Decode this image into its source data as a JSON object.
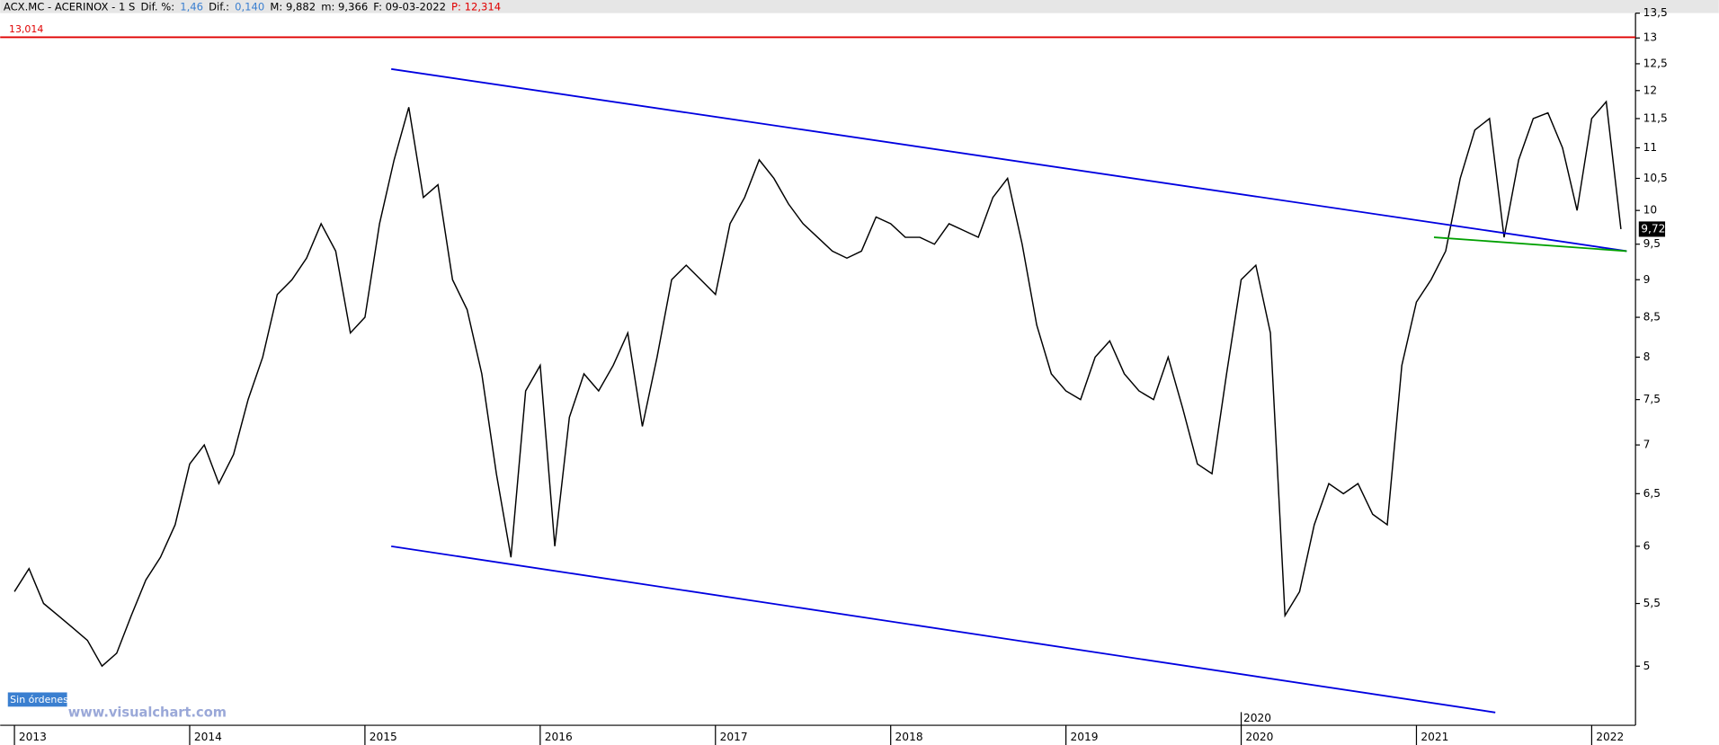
{
  "header": {
    "items": [
      {
        "text": "ACX.MC - ACERINOX -  1 S",
        "color": "#000000"
      },
      {
        "text": "Dif. %:",
        "color": "#000000"
      },
      {
        "text": "1,46",
        "color": "#3a7fd0"
      },
      {
        "text": "Dif.:",
        "color": "#000000"
      },
      {
        "text": "0,140",
        "color": "#3a7fd0"
      },
      {
        "text": "M: 9,882",
        "color": "#000000"
      },
      {
        "text": "m: 9,366",
        "color": "#000000"
      },
      {
        "text": "F: 09-03-2022",
        "color": "#000000"
      },
      {
        "text": "P: 12,314",
        "color": "#e00000"
      }
    ]
  },
  "footer": {
    "status": "Sin órdenes",
    "watermark": "www.visualchart.com"
  },
  "chart_data": {
    "type": "line",
    "log_scale": true,
    "color": "#000000",
    "x": [
      2013,
      2013.0833,
      2013.1667,
      2013.25,
      2013.3333,
      2013.4167,
      2013.5,
      2013.5833,
      2013.6667,
      2013.75,
      2013.8333,
      2013.9167,
      2014,
      2014.0833,
      2014.1667,
      2014.25,
      2014.3333,
      2014.4167,
      2014.5,
      2014.5833,
      2014.6667,
      2014.75,
      2014.8333,
      2014.9167,
      2015,
      2015.0833,
      2015.1667,
      2015.25,
      2015.3333,
      2015.4167,
      2015.5,
      2015.5833,
      2015.6667,
      2015.75,
      2015.8333,
      2015.9167,
      2016,
      2016.0833,
      2016.1667,
      2016.25,
      2016.3333,
      2016.4167,
      2016.5,
      2016.5833,
      2016.6667,
      2016.75,
      2016.8333,
      2016.9167,
      2017,
      2017.0833,
      2017.1667,
      2017.25,
      2017.3333,
      2017.4167,
      2017.5,
      2017.5833,
      2017.6667,
      2017.75,
      2017.8333,
      2017.9167,
      2018,
      2018.0833,
      2018.1667,
      2018.25,
      2018.3333,
      2018.4167,
      2018.5,
      2018.5833,
      2018.6667,
      2018.75,
      2018.8333,
      2018.9167,
      2019,
      2019.0833,
      2019.1667,
      2019.25,
      2019.3333,
      2019.4167,
      2019.5,
      2019.5833,
      2019.6667,
      2019.75,
      2019.8333,
      2019.9167,
      2020,
      2020.0833,
      2020.1667,
      2020.25,
      2020.3333,
      2020.4167,
      2020.5,
      2020.5833,
      2020.6667,
      2020.75,
      2020.8333,
      2020.9167,
      2021,
      2021.0833,
      2021.1667,
      2021.25,
      2021.3333,
      2021.4167,
      2021.5,
      2021.5833,
      2021.6667,
      2021.75,
      2021.8333,
      2021.9167,
      2022,
      2022.0833,
      2022.1667
    ],
    "values": [
      5.6,
      5.8,
      5.5,
      5.4,
      5.3,
      5.2,
      5.0,
      5.1,
      5.4,
      5.7,
      5.9,
      6.2,
      6.8,
      7.0,
      6.6,
      6.9,
      7.5,
      8.0,
      8.8,
      9.0,
      9.3,
      9.8,
      9.4,
      8.3,
      8.5,
      9.8,
      10.8,
      11.7,
      10.2,
      10.4,
      9.0,
      8.6,
      7.8,
      6.7,
      5.9,
      7.6,
      7.9,
      6.0,
      7.3,
      7.8,
      7.6,
      7.9,
      8.3,
      7.2,
      8.0,
      9.0,
      9.2,
      9.0,
      8.8,
      9.8,
      10.2,
      10.8,
      10.5,
      10.1,
      9.8,
      9.6,
      9.4,
      9.3,
      9.4,
      9.9,
      9.8,
      9.6,
      9.6,
      9.5,
      9.8,
      9.7,
      9.6,
      10.2,
      10.5,
      9.5,
      8.4,
      7.8,
      7.6,
      7.5,
      8.0,
      8.2,
      7.8,
      7.6,
      7.5,
      8.0,
      7.4,
      6.8,
      6.7,
      7.8,
      9.0,
      9.2,
      8.3,
      5.4,
      5.6,
      6.2,
      6.6,
      6.5,
      6.6,
      6.3,
      6.2,
      7.9,
      8.7,
      9.0,
      9.4,
      10.5,
      11.3,
      11.5,
      9.6,
      10.8,
      11.5,
      11.6,
      11.0,
      10.0,
      11.5,
      11.8,
      9.72
    ],
    "xlim": [
      2012.95,
      2022.25
    ],
    "xticks": [
      2013,
      2014,
      2015,
      2016,
      2017,
      2018,
      2019,
      2020,
      2021,
      2022
    ],
    "ylim": [
      4.57,
      13.5
    ],
    "yticks": [
      {
        "value": 13.5,
        "label": "13,5"
      },
      13,
      {
        "value": 12.5,
        "label": "12,5"
      },
      12,
      {
        "value": 11.5,
        "label": "11,5"
      },
      11,
      {
        "value": 10.5,
        "label": "10,5"
      },
      10,
      {
        "value": 9.5,
        "label": "9,5"
      },
      9,
      {
        "value": 8.5,
        "label": "8,5"
      },
      8,
      {
        "value": 7.5,
        "label": "7,5"
      },
      7,
      {
        "value": 6.5,
        "label": "6,5"
      },
      6,
      {
        "value": 5.5,
        "label": "5,5"
      },
      5
    ],
    "reference_line": {
      "value": 13.014,
      "label": "13,014",
      "color": "#e00000"
    },
    "last_price": {
      "value": 9.72,
      "label": "9,72"
    },
    "cursor_x": 2020,
    "trend_lines": [
      {
        "color": "#0000e0",
        "x": [
          2015.15,
          2022.2
        ],
        "y": [
          12.4,
          9.4
        ]
      },
      {
        "color": "#0000e0",
        "x": [
          2015.15,
          2021.45
        ],
        "y": [
          6.0,
          4.66
        ]
      },
      {
        "color": "#00a000",
        "x": [
          2021.1,
          2022.2
        ],
        "y": [
          9.6,
          9.4
        ]
      }
    ]
  }
}
